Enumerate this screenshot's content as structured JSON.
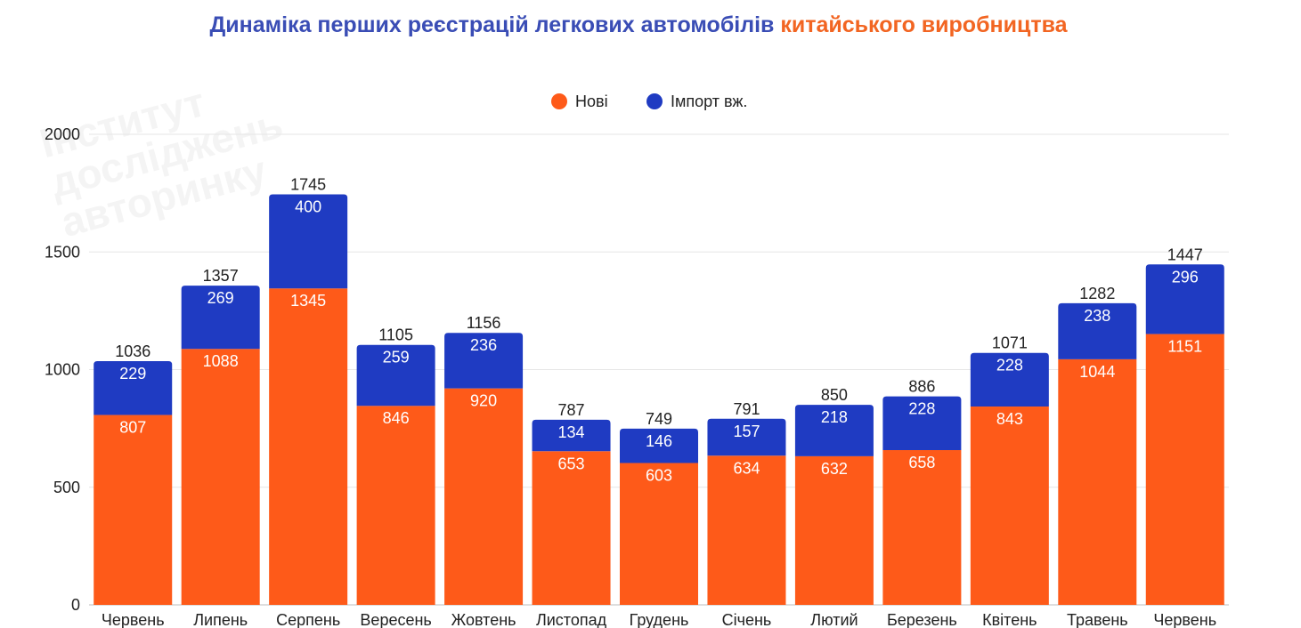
{
  "chart_data": {
    "type": "bar",
    "stacked": true,
    "title_part1": "Динаміка перших реєстрацій легкових автомобілів",
    "title_part2": "китайського виробництва",
    "categories": [
      "Червень",
      "Липень",
      "Серпень",
      "Вересень",
      "Жовтень",
      "Листопад",
      "Грудень",
      "Січень",
      "Лютий",
      "Березень",
      "Квітень",
      "Травень",
      "Червень"
    ],
    "series": [
      {
        "name": "Нові",
        "color": "#fe5a19",
        "values": [
          807,
          1088,
          1345,
          846,
          920,
          653,
          603,
          634,
          632,
          658,
          843,
          1044,
          1151
        ]
      },
      {
        "name": "Імпорт вж.",
        "color": "#1f3bc2",
        "values": [
          229,
          269,
          400,
          259,
          236,
          134,
          146,
          157,
          218,
          228,
          228,
          238,
          296
        ]
      }
    ],
    "totals": [
      1036,
      1357,
      1745,
      1105,
      1156,
      787,
      749,
      791,
      850,
      886,
      1071,
      1282,
      1447
    ],
    "ylim": [
      0,
      2000
    ],
    "yticks": [
      0,
      500,
      1000,
      1500,
      2000
    ],
    "grid": true,
    "legend_position": "top-center"
  },
  "watermark": {
    "lines": [
      "Інститут",
      "досліджень",
      "авторинку"
    ]
  }
}
